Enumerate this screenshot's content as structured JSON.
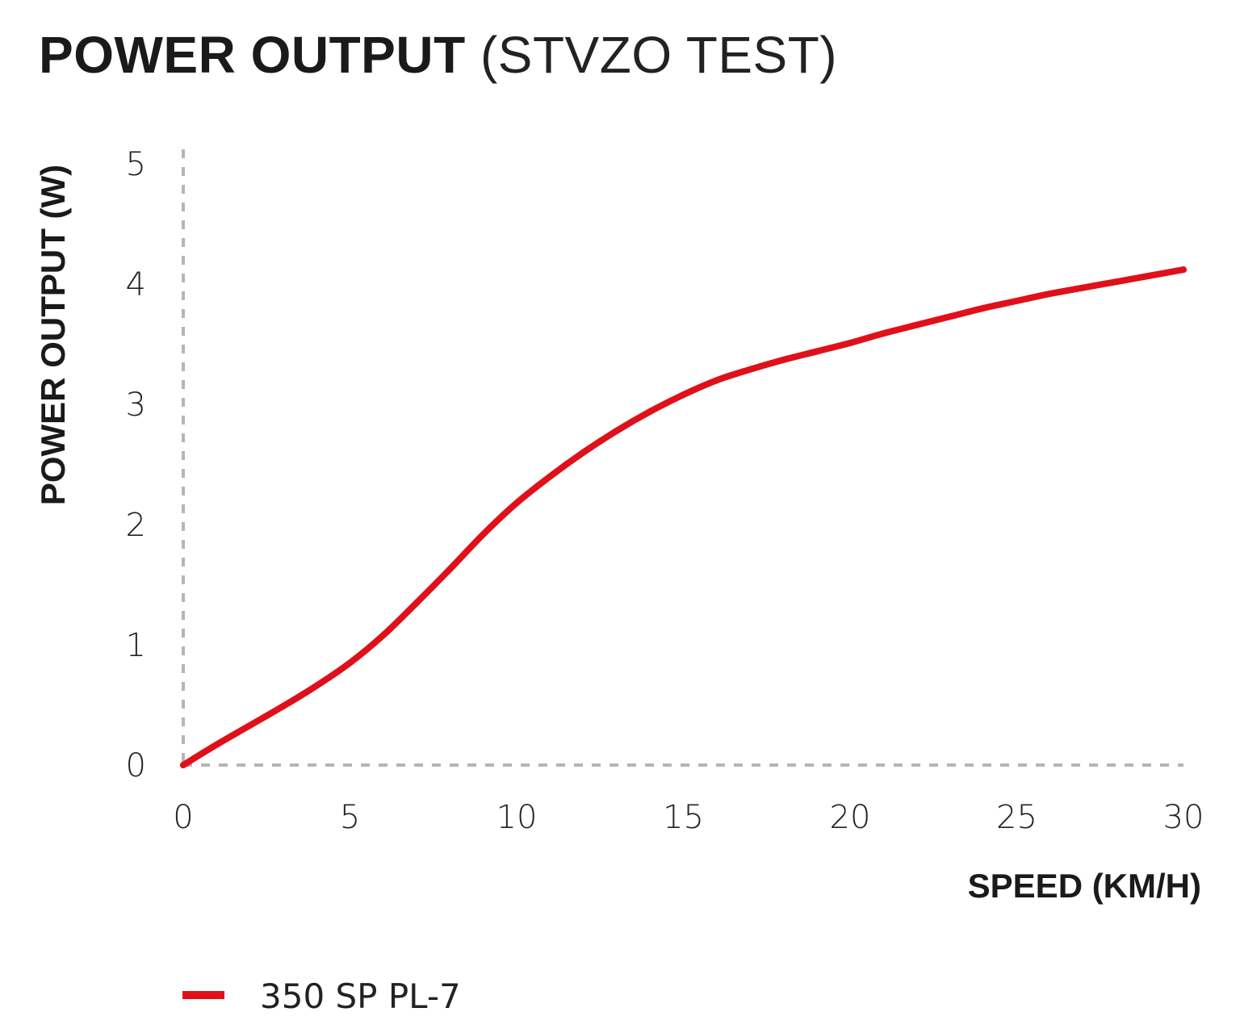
{
  "title": {
    "bold": "POWER OUTPUT",
    "light": "(STVZO TEST)"
  },
  "chart_data": {
    "type": "line",
    "title": "POWER OUTPUT (STVZO TEST)",
    "xlabel": "SPEED (KM/H)",
    "ylabel": "POWER OUTPUT (W)",
    "xlim": [
      0,
      30
    ],
    "ylim": [
      0,
      5
    ],
    "x_ticks": [
      0,
      5,
      10,
      15,
      20,
      25,
      30
    ],
    "y_ticks": [
      0,
      1,
      2,
      3,
      4,
      5
    ],
    "grid": false,
    "legend_position": "bottom-left",
    "series": [
      {
        "name": "350 SP PL-7",
        "color": "#e0101a",
        "x": [
          0,
          1,
          2,
          3,
          4,
          5,
          6,
          7,
          8,
          9,
          10,
          11,
          12,
          13,
          14,
          15,
          16,
          17,
          18,
          19,
          20,
          21,
          22,
          23,
          24,
          25,
          26,
          27,
          28,
          29,
          30
        ],
        "y": [
          0,
          0.17,
          0.33,
          0.49,
          0.66,
          0.85,
          1.08,
          1.35,
          1.63,
          1.92,
          2.18,
          2.4,
          2.6,
          2.78,
          2.94,
          3.08,
          3.2,
          3.29,
          3.37,
          3.44,
          3.51,
          3.59,
          3.66,
          3.73,
          3.8,
          3.86,
          3.92,
          3.97,
          4.02,
          4.07,
          4.12
        ]
      }
    ]
  }
}
